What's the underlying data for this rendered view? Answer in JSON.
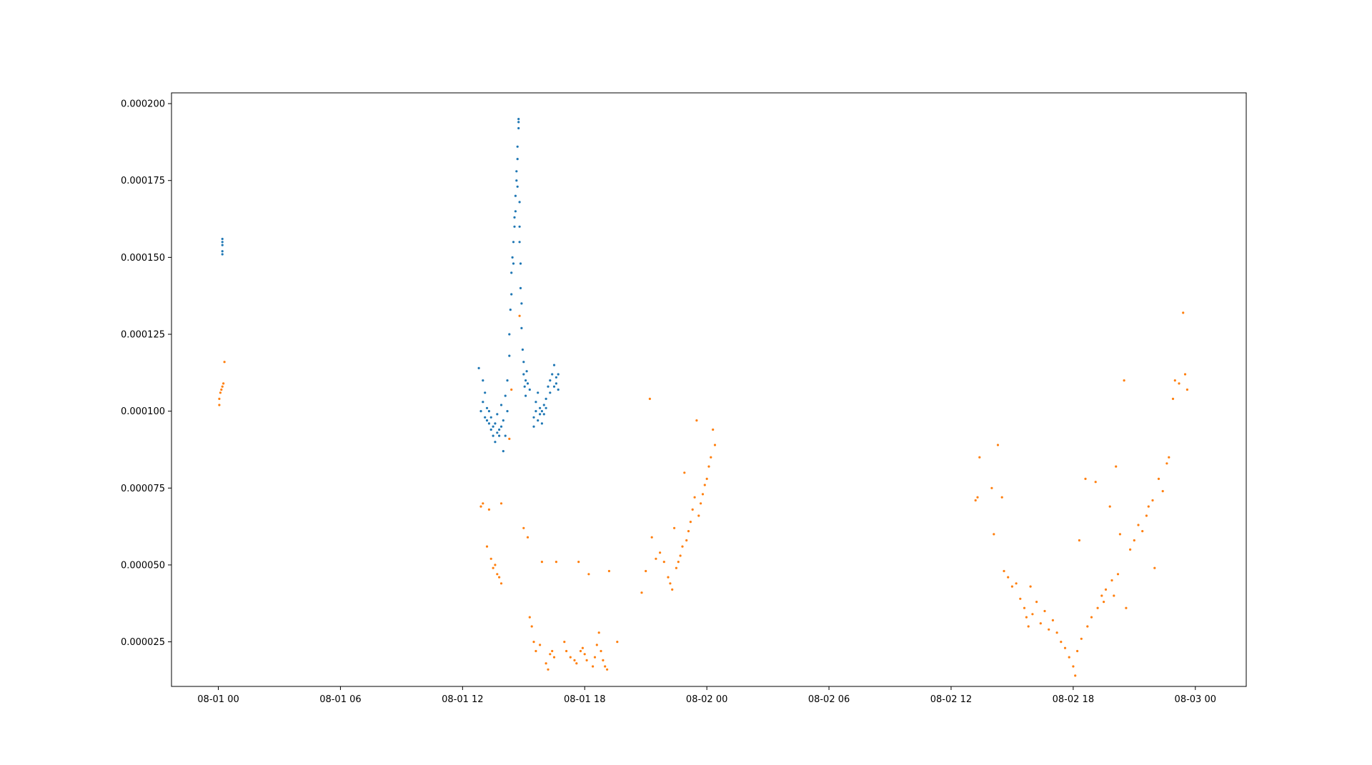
{
  "chart_data": {
    "type": "scatter",
    "title": "",
    "xlabel": "",
    "ylabel": "",
    "x_ticks": [
      "08-01 00",
      "08-01 06",
      "08-01 12",
      "08-01 18",
      "08-02 00",
      "08-02 06",
      "08-02 12",
      "08-02 18",
      "08-03 00"
    ],
    "y_ticks": [
      "0.000025",
      "0.000050",
      "0.000075",
      "0.000100",
      "0.000125",
      "0.000150",
      "0.000175",
      "0.000200"
    ],
    "xlim_hours": [
      -2.3,
      50.5
    ],
    "ylim": [
      1.05e-05,
      0.0002035
    ],
    "grid": false,
    "legend": "none",
    "series": [
      {
        "color": "#1f77b4",
        "points": [
          [
            0.2,
            0.000151
          ],
          [
            0.2,
            0.000152
          ],
          [
            0.2,
            0.000154
          ],
          [
            0.2,
            0.000155
          ],
          [
            0.2,
            0.000156
          ],
          [
            12.8,
            0.000114
          ],
          [
            12.9,
            0.0001
          ],
          [
            13.0,
            0.00011
          ],
          [
            13.0,
            0.000103
          ],
          [
            13.1,
            0.000106
          ],
          [
            13.1,
            9.8e-05
          ],
          [
            13.2,
            0.000101
          ],
          [
            13.2,
            9.7e-05
          ],
          [
            13.3,
            0.0001
          ],
          [
            13.3,
            9.6e-05
          ],
          [
            13.4,
            9.4e-05
          ],
          [
            13.4,
            9.8e-05
          ],
          [
            13.5,
            9.2e-05
          ],
          [
            13.5,
            9.5e-05
          ],
          [
            13.6,
            9e-05
          ],
          [
            13.6,
            9.6e-05
          ],
          [
            13.7,
            9.3e-05
          ],
          [
            13.7,
            9.9e-05
          ],
          [
            13.8,
            9.2e-05
          ],
          [
            13.8,
            9.4e-05
          ],
          [
            13.9,
            9.5e-05
          ],
          [
            13.9,
            0.000102
          ],
          [
            14.0,
            8.7e-05
          ],
          [
            14.0,
            9.7e-05
          ],
          [
            14.1,
            0.000105
          ],
          [
            14.1,
            9.2e-05
          ],
          [
            14.2,
            0.0001
          ],
          [
            14.2,
            0.00011
          ],
          [
            14.3,
            0.000118
          ],
          [
            14.3,
            0.000125
          ],
          [
            14.35,
            0.000133
          ],
          [
            14.4,
            0.000138
          ],
          [
            14.4,
            0.000145
          ],
          [
            14.45,
            0.00015
          ],
          [
            14.5,
            0.000148
          ],
          [
            14.5,
            0.000155
          ],
          [
            14.55,
            0.00016
          ],
          [
            14.55,
            0.000163
          ],
          [
            14.6,
            0.000165
          ],
          [
            14.6,
            0.00017
          ],
          [
            14.65,
            0.000175
          ],
          [
            14.65,
            0.000178
          ],
          [
            14.7,
            0.000182
          ],
          [
            14.7,
            0.000186
          ],
          [
            14.75,
            0.000192
          ],
          [
            14.75,
            0.000194
          ],
          [
            14.75,
            0.000195
          ],
          [
            14.7,
            0.000173
          ],
          [
            14.8,
            0.000168
          ],
          [
            14.8,
            0.00016
          ],
          [
            14.8,
            0.000155
          ],
          [
            14.85,
            0.000148
          ],
          [
            14.85,
            0.00014
          ],
          [
            14.9,
            0.000135
          ],
          [
            14.9,
            0.000127
          ],
          [
            14.95,
            0.00012
          ],
          [
            15.0,
            0.000112
          ],
          [
            15.0,
            0.000116
          ],
          [
            15.05,
            0.000108
          ],
          [
            15.1,
            0.00011
          ],
          [
            15.1,
            0.000105
          ],
          [
            15.15,
            0.000113
          ],
          [
            15.2,
            0.000109
          ],
          [
            15.3,
            0.000107
          ],
          [
            15.5,
            9.8e-05
          ],
          [
            15.5,
            9.5e-05
          ],
          [
            15.6,
            0.0001
          ],
          [
            15.6,
            0.000103
          ],
          [
            15.7,
            9.7e-05
          ],
          [
            15.7,
            0.000106
          ],
          [
            15.8,
            9.9e-05
          ],
          [
            15.8,
            0.000101
          ],
          [
            15.9,
            9.6e-05
          ],
          [
            15.9,
            0.0001
          ],
          [
            16.0,
            0.000102
          ],
          [
            16.0,
            9.9e-05
          ],
          [
            16.1,
            0.000104
          ],
          [
            16.1,
            0.000101
          ],
          [
            16.2,
            0.000108
          ],
          [
            16.3,
            0.00011
          ],
          [
            16.3,
            0.000106
          ],
          [
            16.4,
            0.000112
          ],
          [
            16.5,
            0.000115
          ],
          [
            16.5,
            0.000108
          ],
          [
            16.6,
            0.000111
          ],
          [
            16.6,
            0.000109
          ],
          [
            16.7,
            0.000112
          ],
          [
            16.7,
            0.000107
          ]
        ]
      },
      {
        "color": "#ff7f0e",
        "points": [
          [
            0.05,
            0.000102
          ],
          [
            0.05,
            0.000104
          ],
          [
            0.1,
            0.000106
          ],
          [
            0.15,
            0.000107
          ],
          [
            0.2,
            0.000108
          ],
          [
            0.25,
            0.000109
          ],
          [
            0.3,
            0.000116
          ],
          [
            12.9,
            6.9e-05
          ],
          [
            13.0,
            7e-05
          ],
          [
            13.2,
            5.6e-05
          ],
          [
            13.3,
            6.8e-05
          ],
          [
            13.4,
            5.2e-05
          ],
          [
            13.5,
            4.9e-05
          ],
          [
            13.6,
            5e-05
          ],
          [
            13.7,
            4.7e-05
          ],
          [
            13.8,
            4.6e-05
          ],
          [
            13.9,
            4.4e-05
          ],
          [
            13.9,
            7e-05
          ],
          [
            14.3,
            9.1e-05
          ],
          [
            14.4,
            0.000107
          ],
          [
            14.8,
            0.000131
          ],
          [
            15.0,
            6.2e-05
          ],
          [
            15.2,
            5.9e-05
          ],
          [
            15.3,
            3.3e-05
          ],
          [
            15.4,
            3e-05
          ],
          [
            15.5,
            2.5e-05
          ],
          [
            15.6,
            2.2e-05
          ],
          [
            15.8,
            2.4e-05
          ],
          [
            15.9,
            5.1e-05
          ],
          [
            16.1,
            1.8e-05
          ],
          [
            16.2,
            1.6e-05
          ],
          [
            16.3,
            2.1e-05
          ],
          [
            16.4,
            2.2e-05
          ],
          [
            16.5,
            2e-05
          ],
          [
            16.6,
            5.1e-05
          ],
          [
            17.0,
            2.5e-05
          ],
          [
            17.1,
            2.2e-05
          ],
          [
            17.3,
            2e-05
          ],
          [
            17.5,
            1.9e-05
          ],
          [
            17.6,
            1.8e-05
          ],
          [
            17.7,
            5.1e-05
          ],
          [
            17.8,
            2.2e-05
          ],
          [
            17.9,
            2.3e-05
          ],
          [
            18.0,
            2.1e-05
          ],
          [
            18.1,
            1.9e-05
          ],
          [
            18.2,
            4.7e-05
          ],
          [
            18.4,
            1.7e-05
          ],
          [
            18.5,
            2e-05
          ],
          [
            18.6,
            2.4e-05
          ],
          [
            18.7,
            2.8e-05
          ],
          [
            18.8,
            2.2e-05
          ],
          [
            18.9,
            1.9e-05
          ],
          [
            19.0,
            1.7e-05
          ],
          [
            19.1,
            1.6e-05
          ],
          [
            19.2,
            4.8e-05
          ],
          [
            19.6,
            2.5e-05
          ],
          [
            20.8,
            4.1e-05
          ],
          [
            21.0,
            4.8e-05
          ],
          [
            21.2,
            0.000104
          ],
          [
            21.3,
            5.9e-05
          ],
          [
            21.5,
            5.2e-05
          ],
          [
            21.7,
            5.4e-05
          ],
          [
            21.9,
            5.1e-05
          ],
          [
            22.1,
            4.6e-05
          ],
          [
            22.2,
            4.4e-05
          ],
          [
            22.3,
            4.2e-05
          ],
          [
            22.4,
            6.2e-05
          ],
          [
            22.5,
            4.9e-05
          ],
          [
            22.6,
            5.1e-05
          ],
          [
            22.7,
            5.3e-05
          ],
          [
            22.8,
            5.6e-05
          ],
          [
            22.9,
            8e-05
          ],
          [
            23.0,
            5.8e-05
          ],
          [
            23.1,
            6.1e-05
          ],
          [
            23.2,
            6.4e-05
          ],
          [
            23.3,
            6.8e-05
          ],
          [
            23.4,
            7.2e-05
          ],
          [
            23.5,
            9.7e-05
          ],
          [
            23.6,
            6.6e-05
          ],
          [
            23.7,
            7e-05
          ],
          [
            23.8,
            7.3e-05
          ],
          [
            23.9,
            7.6e-05
          ],
          [
            24.0,
            7.8e-05
          ],
          [
            24.1,
            8.2e-05
          ],
          [
            24.2,
            8.5e-05
          ],
          [
            24.3,
            9.4e-05
          ],
          [
            24.4,
            8.9e-05
          ],
          [
            37.2,
            7.1e-05
          ],
          [
            37.3,
            7.2e-05
          ],
          [
            37.4,
            8.5e-05
          ],
          [
            38.0,
            7.5e-05
          ],
          [
            38.1,
            6e-05
          ],
          [
            38.3,
            8.9e-05
          ],
          [
            38.5,
            7.2e-05
          ],
          [
            38.6,
            4.8e-05
          ],
          [
            38.8,
            4.6e-05
          ],
          [
            39.0,
            4.3e-05
          ],
          [
            39.2,
            4.4e-05
          ],
          [
            39.4,
            3.9e-05
          ],
          [
            39.6,
            3.6e-05
          ],
          [
            39.7,
            3.3e-05
          ],
          [
            39.8,
            3e-05
          ],
          [
            39.9,
            4.3e-05
          ],
          [
            40.0,
            3.4e-05
          ],
          [
            40.2,
            3.8e-05
          ],
          [
            40.4,
            3.1e-05
          ],
          [
            40.6,
            3.5e-05
          ],
          [
            40.8,
            2.9e-05
          ],
          [
            41.0,
            3.2e-05
          ],
          [
            41.2,
            2.8e-05
          ],
          [
            41.4,
            2.5e-05
          ],
          [
            41.6,
            2.3e-05
          ],
          [
            41.8,
            2e-05
          ],
          [
            42.0,
            1.7e-05
          ],
          [
            42.1,
            1.4e-05
          ],
          [
            42.2,
            2.2e-05
          ],
          [
            42.3,
            5.8e-05
          ],
          [
            42.4,
            2.6e-05
          ],
          [
            42.6,
            7.8e-05
          ],
          [
            42.7,
            3e-05
          ],
          [
            42.9,
            3.3e-05
          ],
          [
            43.1,
            7.7e-05
          ],
          [
            43.2,
            3.6e-05
          ],
          [
            43.4,
            4e-05
          ],
          [
            43.5,
            3.8e-05
          ],
          [
            43.6,
            4.2e-05
          ],
          [
            43.8,
            6.9e-05
          ],
          [
            43.9,
            4.5e-05
          ],
          [
            44.0,
            4e-05
          ],
          [
            44.1,
            8.2e-05
          ],
          [
            44.2,
            4.7e-05
          ],
          [
            44.3,
            6e-05
          ],
          [
            44.5,
            0.00011
          ],
          [
            44.6,
            3.6e-05
          ],
          [
            44.8,
            5.5e-05
          ],
          [
            45.0,
            5.8e-05
          ],
          [
            45.2,
            6.3e-05
          ],
          [
            45.4,
            6.1e-05
          ],
          [
            45.6,
            6.6e-05
          ],
          [
            45.7,
            6.9e-05
          ],
          [
            45.9,
            7.1e-05
          ],
          [
            46.0,
            4.9e-05
          ],
          [
            46.2,
            7.8e-05
          ],
          [
            46.4,
            7.4e-05
          ],
          [
            46.6,
            8.3e-05
          ],
          [
            46.7,
            8.5e-05
          ],
          [
            46.9,
            0.000104
          ],
          [
            47.0,
            0.00011
          ],
          [
            47.2,
            0.000109
          ],
          [
            47.4,
            0.000132
          ],
          [
            47.5,
            0.000112
          ],
          [
            47.6,
            0.000107
          ]
        ]
      }
    ]
  }
}
